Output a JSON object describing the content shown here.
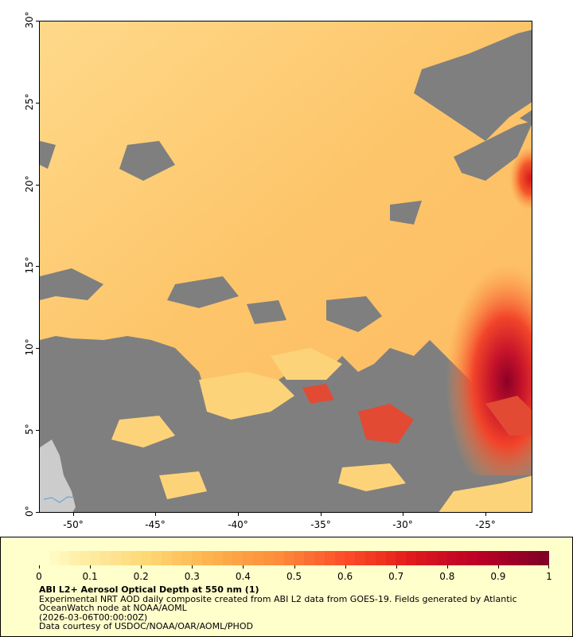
{
  "map": {
    "lat_ticks": [
      "0°",
      "5°",
      "10°",
      "15°",
      "20°",
      "25°",
      "30°"
    ],
    "lon_ticks": [
      "-50°",
      "-45°",
      "-40°",
      "-35°",
      "-30°",
      "-25°"
    ],
    "lat_range": [
      0,
      30
    ],
    "lon_range": [
      -52,
      -22
    ],
    "no_data_color": "#7f7f7f",
    "land_color": "#cccccc",
    "river_color": "#5b9bd5"
  },
  "legend": {
    "colorbar_min": 0,
    "colorbar_max": 1,
    "colorbar_labels": [
      "0",
      "0.1",
      "0.2",
      "0.3",
      "0.4",
      "0.5",
      "0.6",
      "0.7",
      "0.8",
      "0.9",
      "1"
    ],
    "colorbar_colors": [
      "#ffffcc",
      "#fff0a8",
      "#fee391",
      "#fed976",
      "#fec561",
      "#feb24c",
      "#fd9e43",
      "#fd8d3c",
      "#fc6e33",
      "#fc4e2a",
      "#f0361f",
      "#e31a1c",
      "#cc0c22",
      "#bd0026",
      "#a00026",
      "#800026"
    ],
    "title": "ABI L2+ Aerosol Optical Depth at 550 nm (1)",
    "line1": "Experimental NRT AOD daily composite created from ABI L2 data from GOES-19. Fields generated by Atlantic",
    "line2": "OceanWatch node at NOAA/AOML",
    "line3": "(2026-03-06T00:00:00Z)",
    "line4": "Data courtesy of USDOC/NOAA/OAR/AOML/PHOD"
  }
}
